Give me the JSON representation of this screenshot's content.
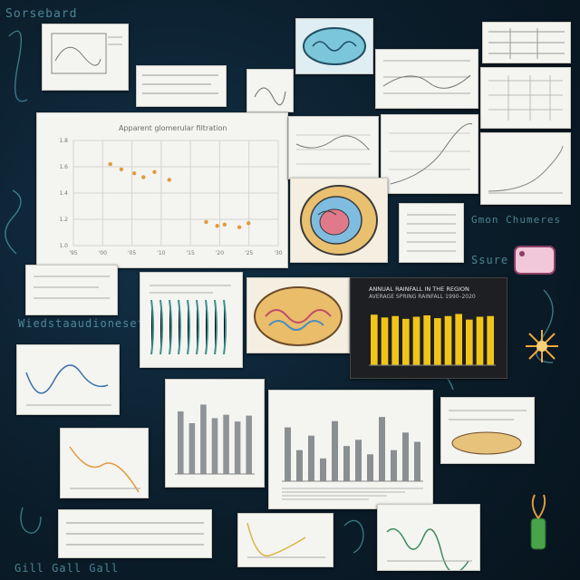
{
  "colors": {
    "background": "#0b1d2a",
    "doodle": "#7fd6e6",
    "paper": "#f4f4f1",
    "bar_gold": "#f0c419",
    "dot_orange": "#e39a3b"
  },
  "icons": {
    "kidney_cross_section": "cross-section-icon",
    "sticker_tag": "tag-icon",
    "starburst": "starburst-icon",
    "plant": "plant-icon"
  },
  "main_chart": {
    "title": "Apparent glomerular filtration",
    "y_ticks": [
      "1.8",
      "1.6",
      "1.4",
      "1.2",
      "1.0"
    ],
    "x_ticks": [
      "'95",
      "'00",
      "'05",
      "'10",
      "'15",
      "'20",
      "'25",
      "'30"
    ],
    "cluster_values": [
      1.62,
      1.58,
      1.55,
      1.52,
      1.56,
      1.5,
      1.18,
      1.15,
      1.16,
      1.14,
      1.17
    ]
  },
  "dark_bar_chart": {
    "title_line1": "ANNUAL RAINFALL IN THE REGION",
    "title_line2": "AVERAGE SPRING RAINFALL 1990–2020",
    "values": [
      72,
      68,
      70,
      66,
      69,
      71,
      67,
      70,
      73,
      65,
      69,
      70
    ]
  },
  "center_bar_chart": {
    "values": [
      52,
      30,
      44,
      22,
      58,
      34,
      40,
      26,
      62,
      30,
      47,
      38
    ]
  },
  "left_bar_chart": {
    "values": [
      74,
      60,
      82,
      66,
      70,
      62,
      69
    ]
  },
  "doodles": {
    "top_left": "Sorsebard",
    "left_mid": "Wiedstaaudionesetin",
    "right_mid": "Gmon Chumeres",
    "right_mid2": "Ssure",
    "bottom_strip": "Gill Gall Gall"
  }
}
